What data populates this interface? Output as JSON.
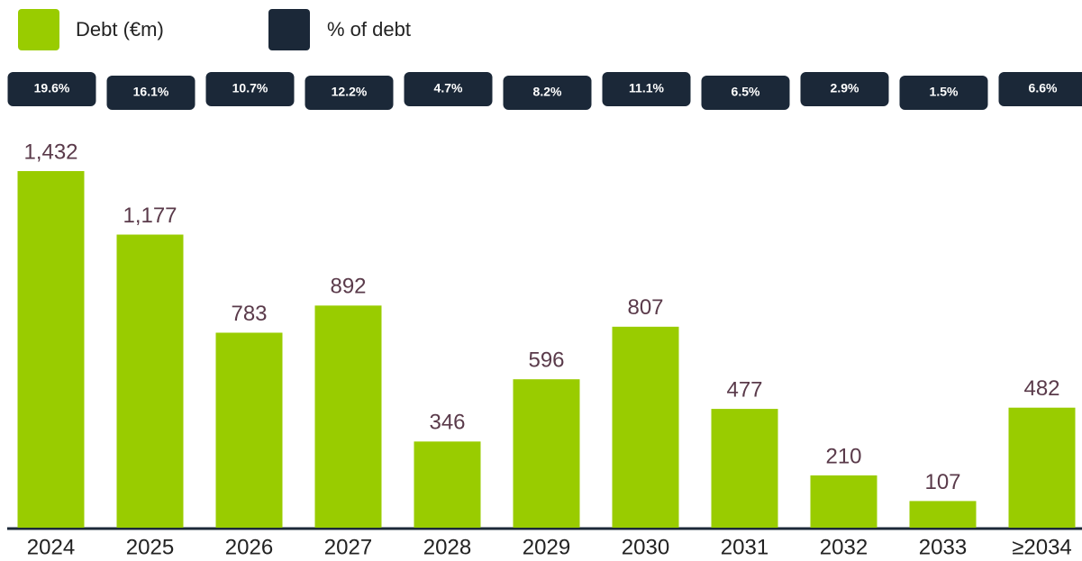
{
  "chart_data": {
    "type": "bar",
    "categories": [
      "2024",
      "2025",
      "2026",
      "2027",
      "2028",
      "2029",
      "2030",
      "2031",
      "2032",
      "2033",
      "≥2034"
    ],
    "series": [
      {
        "name": "Debt (€m)",
        "color": "#99cc00",
        "values": [
          1432,
          1177,
          783,
          892,
          346,
          596,
          807,
          477,
          210,
          107,
          482
        ],
        "value_labels": [
          "1,432",
          "1,177",
          "783",
          "892",
          "346",
          "596",
          "807",
          "477",
          "210",
          "107",
          "482"
        ]
      },
      {
        "name": "% of debt",
        "color": "#1b2838",
        "values": [
          19.6,
          16.1,
          10.7,
          12.2,
          4.7,
          8.2,
          11.1,
          6.5,
          2.9,
          1.5,
          6.6
        ],
        "value_labels": [
          "19.6%",
          "16.1%",
          "10.7%",
          "12.2%",
          "4.7%",
          "8.2%",
          "11.1%",
          "6.5%",
          "2.9%",
          "1.5%",
          "6.6%"
        ]
      }
    ]
  }
}
